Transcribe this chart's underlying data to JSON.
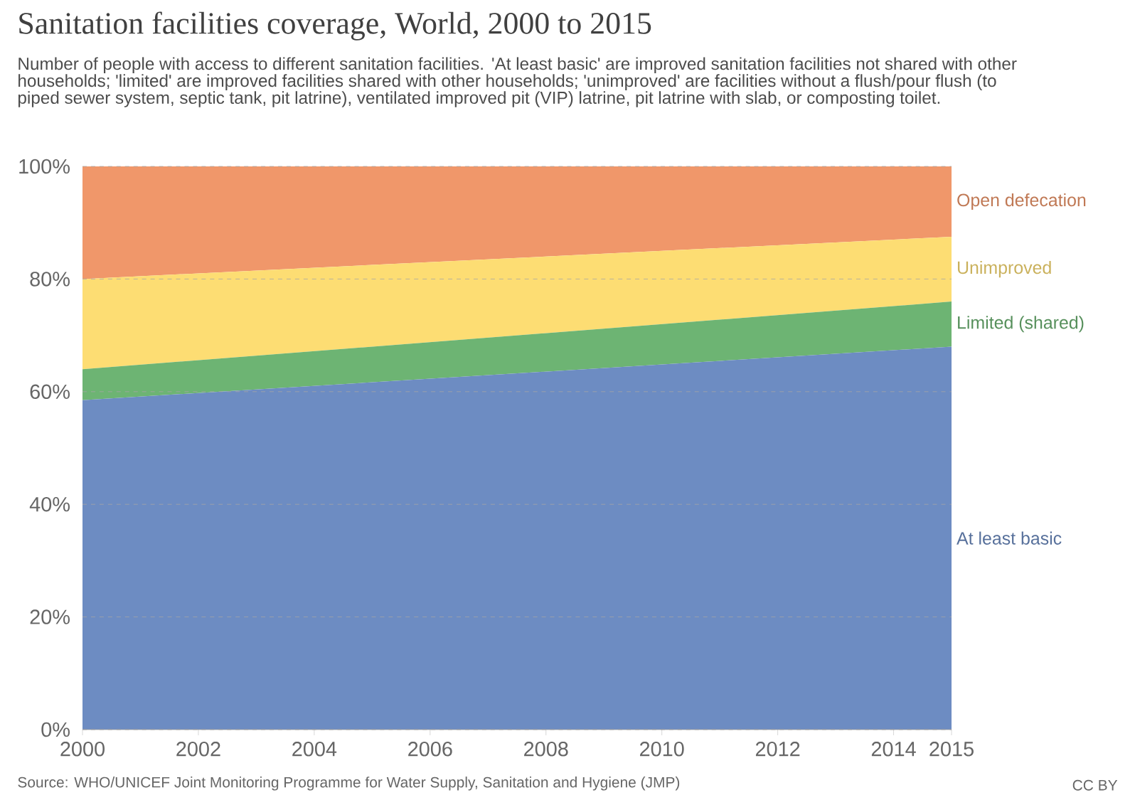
{
  "chart_data": {
    "type": "area",
    "stacked": true,
    "title": "Sanitation facilities coverage, World, 2000 to 2015",
    "subtitle": "Number of people with access to different sanitation facilities. 'At least basic' are improved sanitation facilities not shared with other households; 'limited' are improved facilities shared with other households; 'unimproved' are facilities without a flush/pour flush (to piped sewer system, septic tank, pit latrine), ventilated improved pit (VIP) latrine, pit latrine with slab, or composting toilet.",
    "x": [
      2000,
      2015
    ],
    "series": [
      {
        "name": "At least basic",
        "color": "#6d8cc2",
        "values": [
          58.5,
          68
        ]
      },
      {
        "name": "Limited (shared)",
        "color": "#6db473",
        "values": [
          5.5,
          8
        ]
      },
      {
        "name": "Unimproved",
        "color": "#fddd73",
        "values": [
          16,
          11.5
        ]
      },
      {
        "name": "Open defecation",
        "color": "#f0976a",
        "values": [
          20,
          12.5
        ]
      }
    ],
    "xlim": [
      2000,
      2015
    ],
    "xticks": [
      2000,
      2002,
      2004,
      2006,
      2008,
      2010,
      2012,
      2014,
      2015
    ],
    "ylim": [
      0,
      100
    ],
    "yticks": [
      {
        "value": 0,
        "label": "0%"
      },
      {
        "value": 20,
        "label": "20%"
      },
      {
        "value": 40,
        "label": "40%"
      },
      {
        "value": 60,
        "label": "60%"
      },
      {
        "value": 80,
        "label": "80%"
      },
      {
        "value": 100,
        "label": "100%"
      }
    ],
    "grid": "y",
    "annotations": [
      "Source: WHO/UNICEF Joint Monitoring Programme for Water Supply, Sanitation and Hygiene (JMP)",
      "CC BY"
    ]
  }
}
